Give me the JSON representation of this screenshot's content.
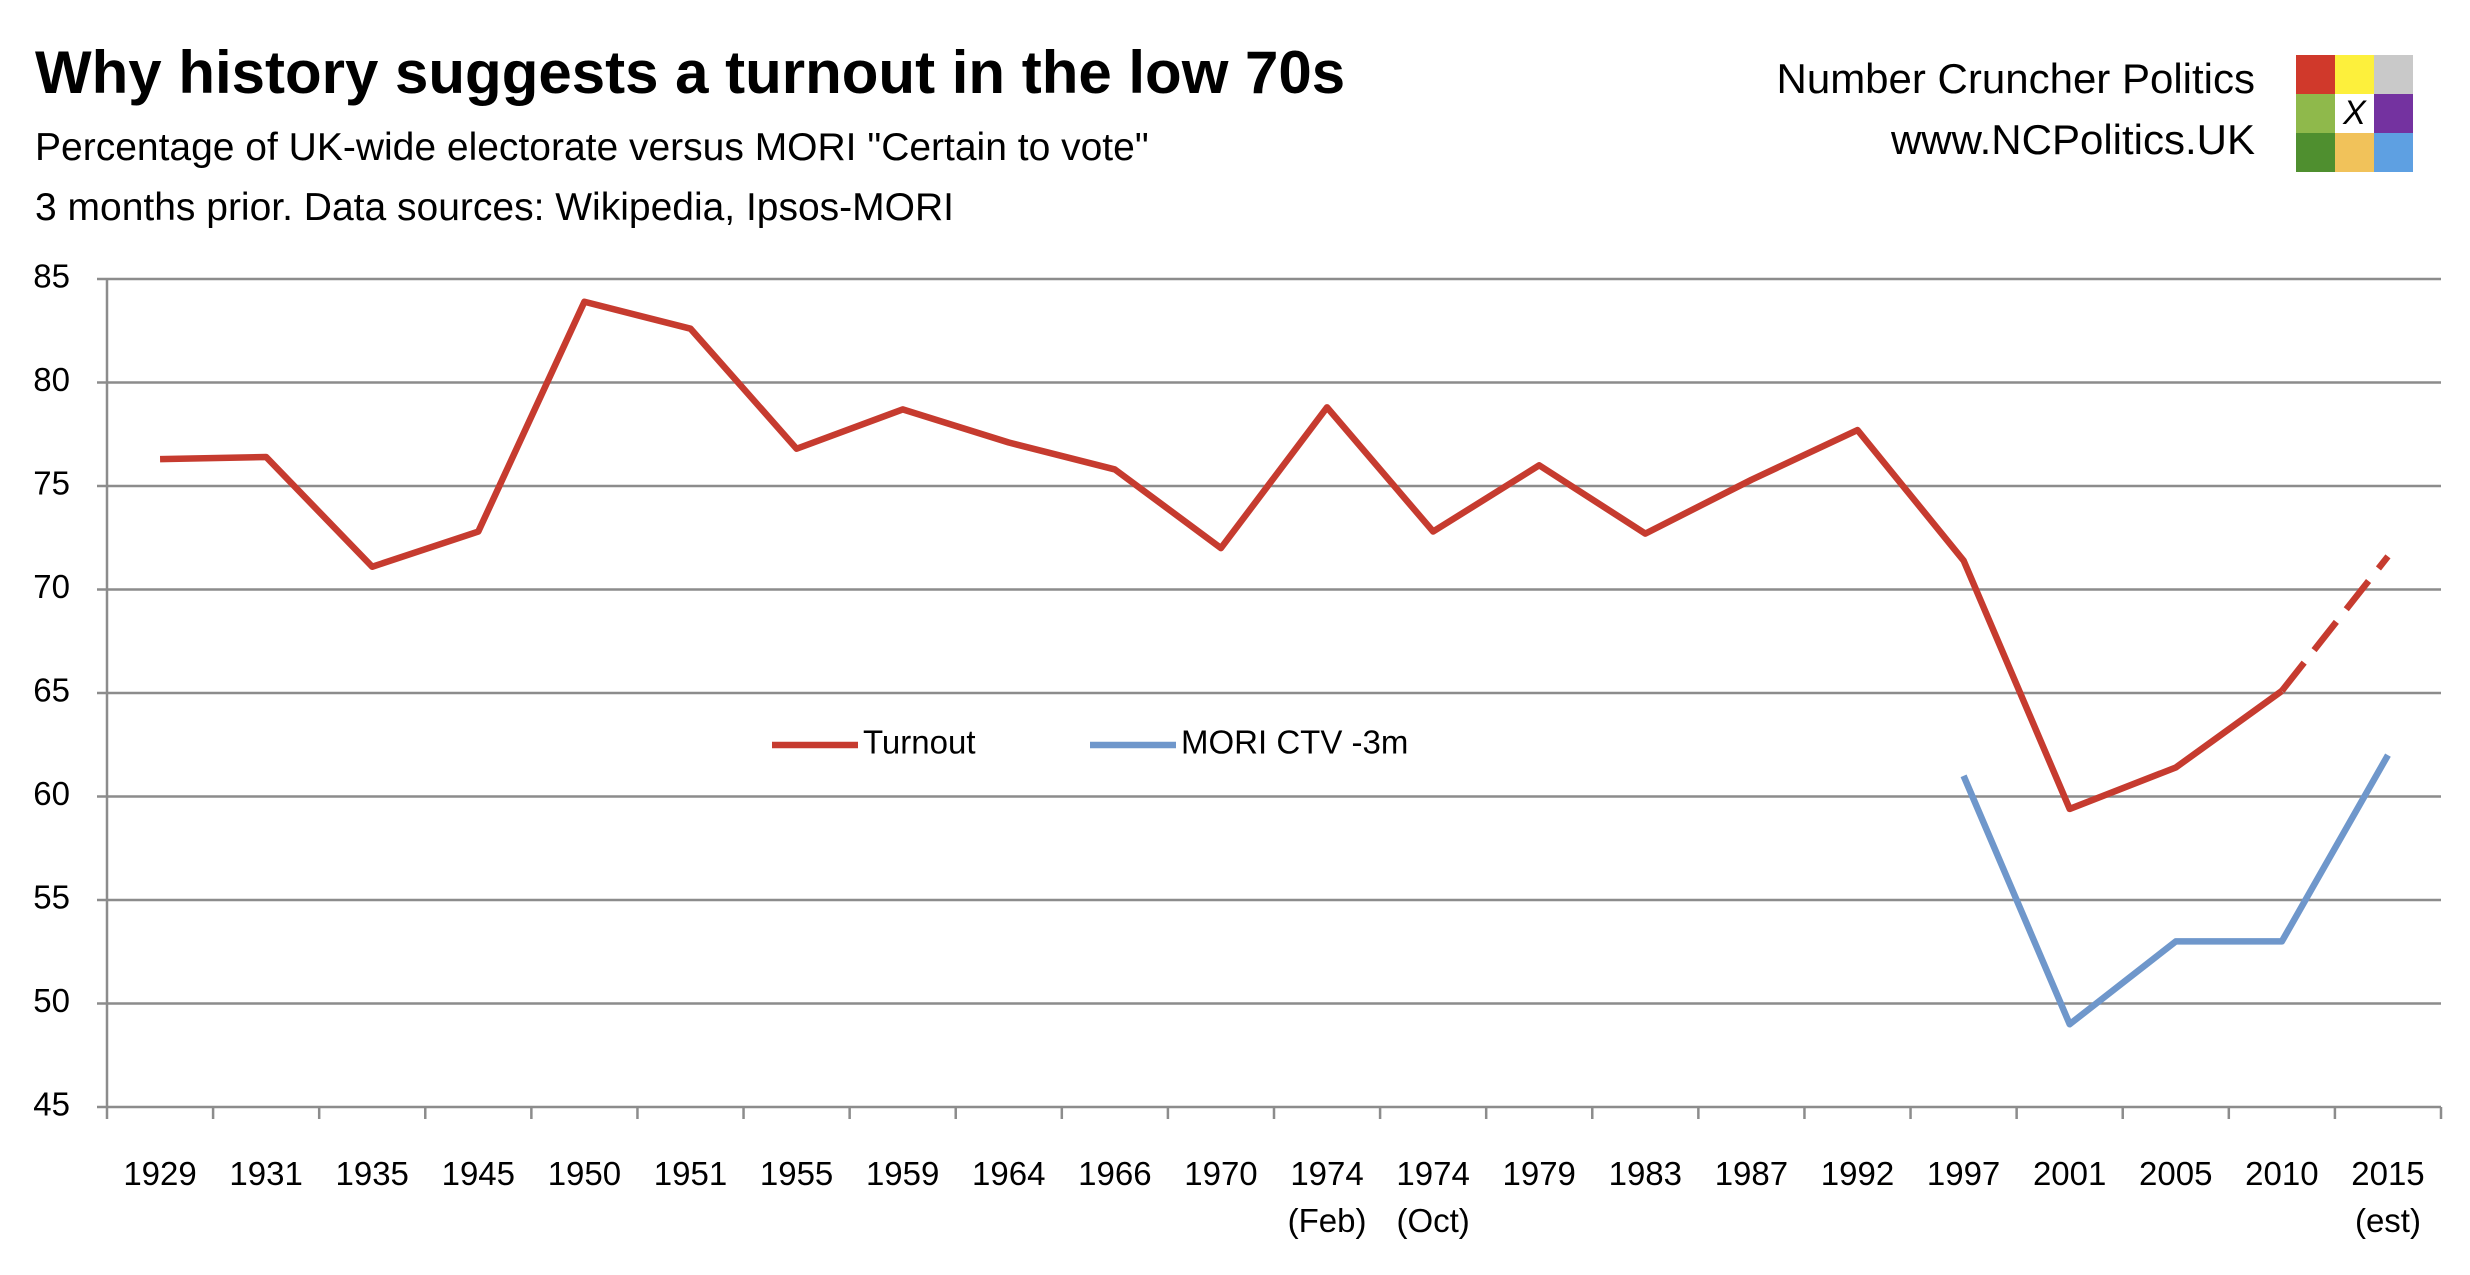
{
  "chart_data": {
    "type": "line",
    "title": "Why history suggests a turnout in the low 70s",
    "subtitle": "Percentage of UK-wide electorate versus MORI \"Certain to vote\"\n3 months prior. Data sources: Wikipedia, Ipsos-MORI",
    "brand": {
      "name": "Number Cruncher Politics",
      "url": "www.NCPolitics.UK",
      "mark": "X"
    },
    "categories": [
      "1929",
      "1931",
      "1935",
      "1945",
      "1950",
      "1951",
      "1955",
      "1959",
      "1964",
      "1966",
      "1970",
      "1974\n(Feb)",
      "1974\n(Oct)",
      "1979",
      "1983",
      "1987",
      "1992",
      "1997",
      "2001",
      "2005",
      "2010",
      "2015\n(est)"
    ],
    "series": [
      {
        "name": "Turnout",
        "color": "#c63b2f",
        "dashed_last_segment": true,
        "values": [
          76.3,
          76.4,
          71.1,
          72.8,
          83.9,
          82.6,
          76.8,
          78.7,
          77.1,
          75.8,
          72.0,
          78.8,
          72.8,
          76.0,
          72.7,
          75.3,
          77.7,
          71.4,
          59.4,
          61.4,
          65.1,
          71.6
        ]
      },
      {
        "name": "MORI CTV -3m",
        "color": "#6f97cb",
        "values": [
          null,
          null,
          null,
          null,
          null,
          null,
          null,
          null,
          null,
          null,
          null,
          null,
          null,
          null,
          null,
          null,
          null,
          61,
          49,
          53,
          53,
          62
        ]
      }
    ],
    "ylim": [
      45,
      85
    ],
    "yticks": [
      45,
      50,
      55,
      60,
      65,
      70,
      75,
      80,
      85
    ],
    "grid": true,
    "legend": "inside"
  }
}
